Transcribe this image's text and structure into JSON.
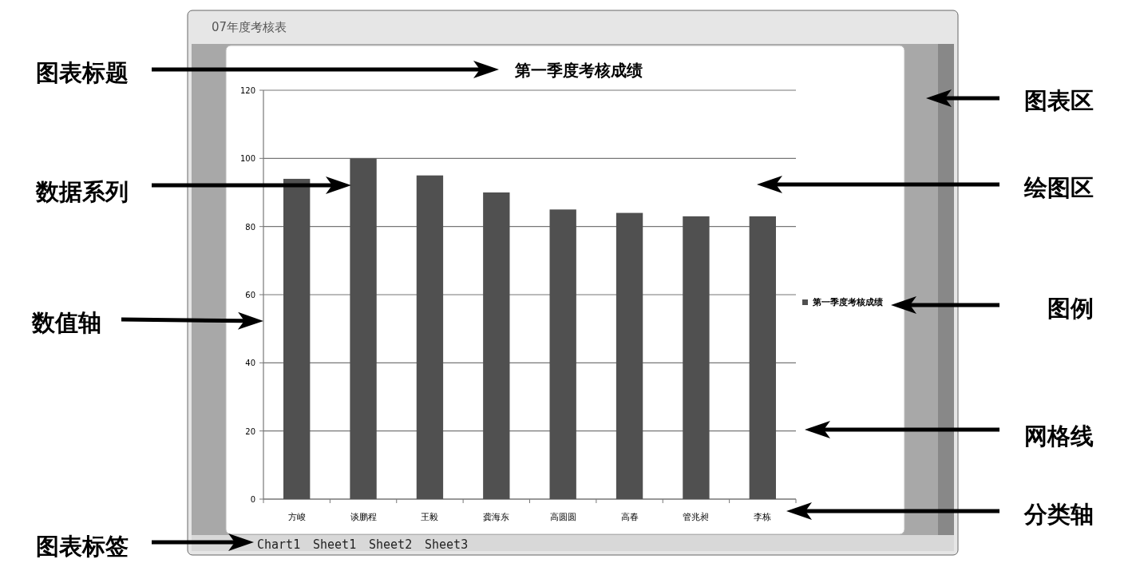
{
  "chart_data": {
    "type": "bar",
    "title": "第一季度考核成绩",
    "categories": [
      "方峻",
      "谈鹏程",
      "王毅",
      "龚海东",
      "高圆圆",
      "高春",
      "管兆昶",
      "李栋"
    ],
    "series": [
      {
        "name": "第一季度考核成绩",
        "color": "#505050",
        "values": [
          94,
          100,
          95,
          90,
          85,
          84,
          83,
          83
        ]
      }
    ],
    "ylim": [
      0,
      120
    ],
    "yticks": [
      0,
      20,
      40,
      60,
      80,
      100,
      120
    ],
    "grid": "y",
    "legend": "right",
    "annotations": [
      "07年度考核表",
      "图表标题",
      "数据系列",
      "数值轴",
      "图表标签",
      "图表区",
      "绘图区",
      "图例",
      "网格线",
      "分类轴",
      "Chart1",
      "Sheet1",
      "Sheet2",
      "Sheet3"
    ]
  }
}
